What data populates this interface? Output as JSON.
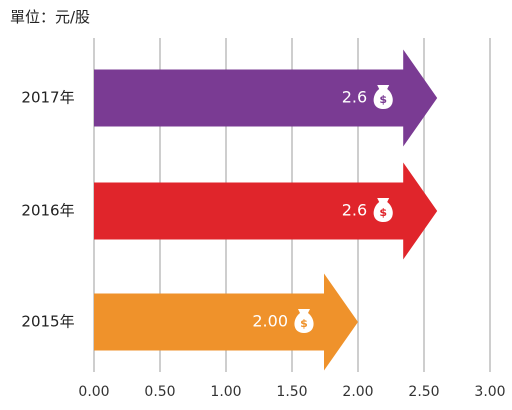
{
  "unit_label": "單位：元/股",
  "chart_data": {
    "type": "bar",
    "orientation": "horizontal",
    "bar_style": "arrow",
    "categories": [
      "2017年",
      "2016年",
      "2015年"
    ],
    "values": [
      2.6,
      2.6,
      2.0
    ],
    "value_labels": [
      "2.6",
      "2.6",
      "2.00"
    ],
    "colors": [
      "#7a3b93",
      "#e0252b",
      "#ef922b"
    ],
    "x_ticks": [
      "0.00",
      "0.50",
      "1.00",
      "1.50",
      "2.00",
      "2.50",
      "3.00"
    ],
    "xlim": [
      0,
      3
    ],
    "grid": true,
    "legend": "none",
    "icon": "money-bag-icon"
  }
}
